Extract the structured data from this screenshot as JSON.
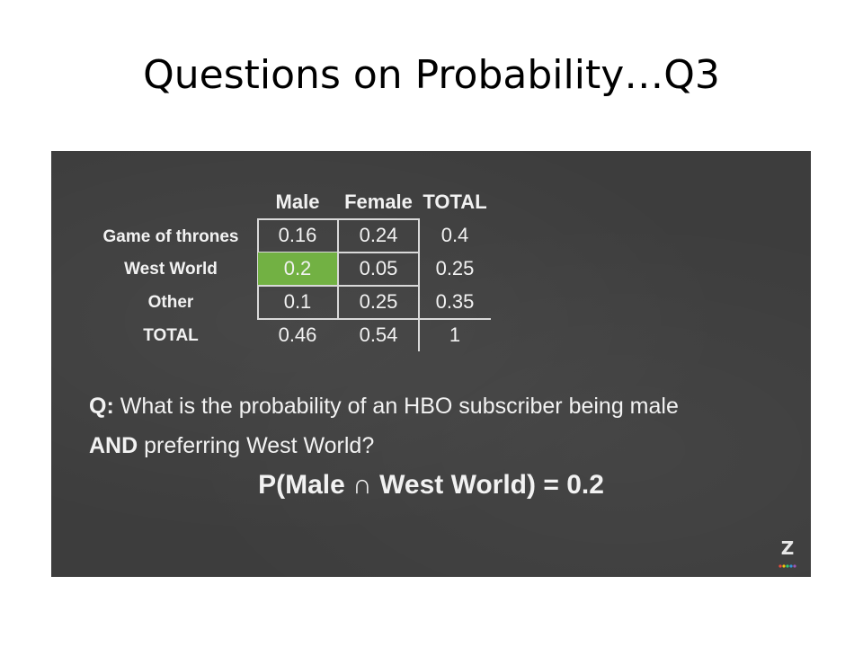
{
  "slide": {
    "title": "Questions on Probability…Q3"
  },
  "table": {
    "columns": [
      "Male",
      "Female",
      "TOTAL"
    ],
    "rows": [
      {
        "label": "Game of thrones",
        "values": [
          "0.16",
          "0.24",
          "0.4"
        ]
      },
      {
        "label": "West World",
        "values": [
          "0.2",
          "0.05",
          "0.25"
        ]
      },
      {
        "label": "Other",
        "values": [
          "0.1",
          "0.25",
          "0.35"
        ]
      },
      {
        "label": "TOTAL",
        "values": [
          "0.46",
          "0.54",
          "1"
        ]
      }
    ],
    "highlight_color": "#72b143"
  },
  "question": {
    "prefix": "Q:",
    "line1": "What is the probability of an HBO subscriber being male",
    "and_word": "AND",
    "line2": "preferring West World?"
  },
  "answer": {
    "text": "P(Male ∩ West World) = 0.2"
  },
  "logo": {
    "letter": "Z"
  }
}
